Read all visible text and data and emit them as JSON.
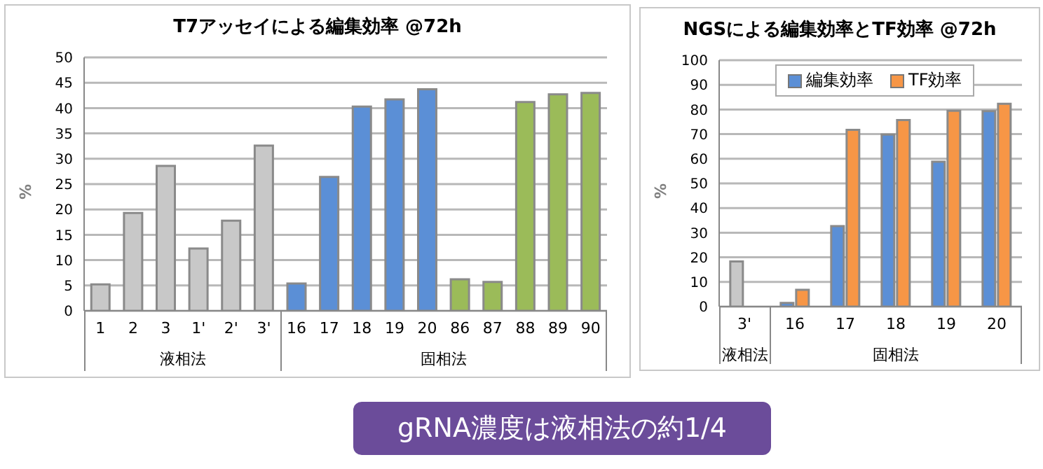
{
  "chart_data": [
    {
      "type": "bar",
      "title": "T7アッセイによる編集効率 @72h",
      "ylabel": "%",
      "categories": [
        "1",
        "2",
        "3",
        "1'",
        "2'",
        "3'",
        "16",
        "17",
        "18",
        "19",
        "20",
        "86",
        "87",
        "88",
        "89",
        "90"
      ],
      "values": [
        5.2,
        19.3,
        28.6,
        12.3,
        17.8,
        32.6,
        5.4,
        26.4,
        40.3,
        41.7,
        43.7,
        6.2,
        5.7,
        41.2,
        42.7,
        43.0
      ],
      "colors": [
        "#c8c8c8",
        "#c8c8c8",
        "#c8c8c8",
        "#c8c8c8",
        "#c8c8c8",
        "#c8c8c8",
        "#5b8fd6",
        "#5b8fd6",
        "#5b8fd6",
        "#5b8fd6",
        "#5b8fd6",
        "#9bbb59",
        "#9bbb59",
        "#9bbb59",
        "#9bbb59",
        "#9bbb59"
      ],
      "ylim": [
        0,
        50
      ],
      "yticks": [
        0,
        5,
        10,
        15,
        20,
        25,
        30,
        35,
        40,
        45,
        50
      ],
      "grid": "y",
      "legend": false,
      "annotations": [
        "液相法",
        "固相法",
        "gRNA濃度は液相法の約1/4"
      ]
    },
    {
      "type": "bar",
      "title": "NGSによる編集効率とTF効率 @72h",
      "ylabel": "%",
      "categories": [
        "3'",
        "16",
        "17",
        "18",
        "19",
        "20"
      ],
      "series": [
        {
          "name": "編集効率",
          "color": "#5b8fd6",
          "colors": [
            "#c8c8c8",
            "#5b8fd6",
            "#5b8fd6",
            "#5b8fd6",
            "#5b8fd6",
            "#5b8fd6"
          ],
          "values": [
            18.3,
            1.5,
            32.7,
            69.8,
            58.8,
            79.3
          ]
        },
        {
          "name": "TF効率",
          "color": "#f79646",
          "values": [
            null,
            6.8,
            71.7,
            75.7,
            79.5,
            82.3
          ]
        }
      ],
      "ylim": [
        0,
        100
      ],
      "yticks": [
        0,
        10,
        20,
        30,
        40,
        50,
        60,
        70,
        80,
        90,
        100
      ],
      "grid": "y",
      "legend": "top",
      "annotations": [
        "液相法",
        "固相法"
      ]
    }
  ]
}
